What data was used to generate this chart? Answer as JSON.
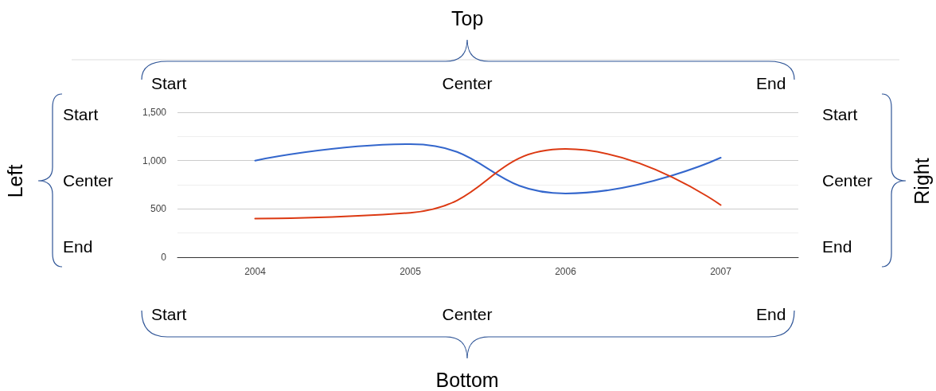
{
  "chart_data": {
    "type": "line",
    "categories": [
      "2004",
      "2005",
      "2006",
      "2007"
    ],
    "series": [
      {
        "color": "#3366cc",
        "values": [
          1000,
          1170,
          660,
          1030
        ]
      },
      {
        "color": "#dc3912",
        "values": [
          400,
          460,
          1120,
          540
        ]
      }
    ],
    "ylim": [
      0,
      1500
    ],
    "yticks": [
      0,
      {
        "value": 250,
        "label": null
      },
      500,
      {
        "value": 750,
        "label": null
      },
      {
        "value": 1000,
        "label": "1,000"
      },
      {
        "value": 1250,
        "label": null
      },
      {
        "value": 1500,
        "label": "1,500"
      }
    ],
    "grid": "y",
    "marker": "none",
    "line_style": "solid",
    "annotations": [
      "Top",
      "Start",
      "Center",
      "End",
      "Bottom",
      "Start",
      "Center",
      "End",
      "Left",
      "Start",
      "Center",
      "End",
      "Right",
      "Start",
      "Center",
      "End"
    ]
  }
}
